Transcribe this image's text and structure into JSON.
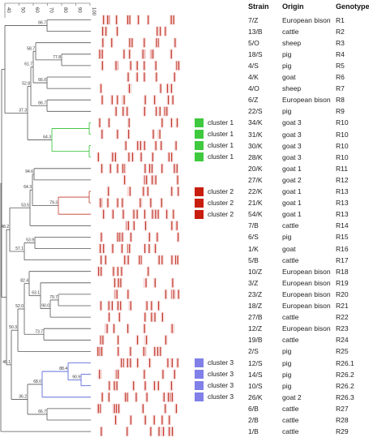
{
  "similarity_scale": {
    "ticks": [
      "40",
      "50",
      "60",
      "70",
      "80",
      "90",
      "100"
    ]
  },
  "headers": {
    "strain": "Strain",
    "origin": "Origin",
    "genotype": "Genotype"
  },
  "node_values": [
    "66.7",
    "77.8",
    "58.7",
    "66.0",
    "61.7",
    "66.7",
    "52.8",
    "64.3",
    "37.3",
    "53.5",
    "94.6",
    "79.3",
    "64.3",
    "48.2",
    "53.9",
    "57.1",
    "40.1",
    "82.4",
    "63.1",
    "79.7",
    "90.0",
    "52.0",
    "73.7",
    "50.3",
    "68.0",
    "88.4",
    "90.9",
    "36.2",
    "66.7"
  ],
  "rows": [
    {
      "strain": "7/Z",
      "origin": "European bison",
      "genotype": "R1"
    },
    {
      "strain": "13/B",
      "origin": "cattle",
      "genotype": "R2"
    },
    {
      "strain": "5/O",
      "origin": "sheep",
      "genotype": "R3"
    },
    {
      "strain": "18/S",
      "origin": "pig",
      "genotype": "R4"
    },
    {
      "strain": "4/S",
      "origin": "pig",
      "genotype": "R5"
    },
    {
      "strain": "4/K",
      "origin": "goat",
      "genotype": "R6"
    },
    {
      "strain": "4/O",
      "origin": "sheep",
      "genotype": "R7"
    },
    {
      "strain": "6/Z",
      "origin": "European bison",
      "genotype": "R8"
    },
    {
      "strain": "22/S",
      "origin": "pig",
      "genotype": "R9"
    },
    {
      "strain": "34/K",
      "origin": "goat 3",
      "genotype": "R10"
    },
    {
      "strain": "31/K",
      "origin": "goat 3",
      "genotype": "R10"
    },
    {
      "strain": "30/K",
      "origin": "goat 3",
      "genotype": "R10"
    },
    {
      "strain": "28/K",
      "origin": "goat 3",
      "genotype": "R10"
    },
    {
      "strain": "20/K",
      "origin": "goat 1",
      "genotype": "R11"
    },
    {
      "strain": "27/K",
      "origin": "goat 2",
      "genotype": "R12"
    },
    {
      "strain": "22/K",
      "origin": "goat 1",
      "genotype": "R13"
    },
    {
      "strain": "21/K",
      "origin": "goat 1",
      "genotype": "R13"
    },
    {
      "strain": "54/K",
      "origin": "goat 1",
      "genotype": "R13"
    },
    {
      "strain": "7/B",
      "origin": "cattle",
      "genotype": "R14"
    },
    {
      "strain": "6/S",
      "origin": "pig",
      "genotype": "R15"
    },
    {
      "strain": "1/K",
      "origin": "goat",
      "genotype": "R16"
    },
    {
      "strain": "5/B",
      "origin": "cattle",
      "genotype": "R17"
    },
    {
      "strain": "10/Z",
      "origin": "European bison",
      "genotype": "R18"
    },
    {
      "strain": "3/Z",
      "origin": "European bison",
      "genotype": "R19"
    },
    {
      "strain": "23/Z",
      "origin": "European bison",
      "genotype": "R20"
    },
    {
      "strain": "18/Z",
      "origin": "European bison",
      "genotype": "R21"
    },
    {
      "strain": "27/B",
      "origin": "cattle",
      "genotype": "R22"
    },
    {
      "strain": "12/Z",
      "origin": "European bison",
      "genotype": "R23"
    },
    {
      "strain": "19/B",
      "origin": "cattle",
      "genotype": "R24"
    },
    {
      "strain": "2/S",
      "origin": "pig",
      "genotype": "R25"
    },
    {
      "strain": "12/S",
      "origin": "pig",
      "genotype": "R26.1"
    },
    {
      "strain": "14/S",
      "origin": "pig",
      "genotype": "R26.2"
    },
    {
      "strain": "10/S",
      "origin": "pig",
      "genotype": "R26.2"
    },
    {
      "strain": "26/K",
      "origin": "goat 2",
      "genotype": "R26.3"
    },
    {
      "strain": "6/B",
      "origin": "cattle",
      "genotype": "R27"
    },
    {
      "strain": "2/B",
      "origin": "cattle",
      "genotype": "R28"
    },
    {
      "strain": "1/B",
      "origin": "cattle",
      "genotype": "R29"
    }
  ],
  "clusters": [
    {
      "label": "cluster 1",
      "color": "#3ec93e"
    },
    {
      "label": "cluster 1",
      "color": "#3ec93e"
    },
    {
      "label": "cluster 1",
      "color": "#3ec93e"
    },
    {
      "label": "cluster 1",
      "color": "#3ec93e"
    },
    {
      "label": "cluster 2",
      "color": "#c81e10"
    },
    {
      "label": "cluster 2",
      "color": "#c81e10"
    },
    {
      "label": "cluster 2",
      "color": "#c81e10"
    },
    {
      "label": "cluster 3",
      "color": "#8080e8"
    },
    {
      "label": "cluster 3",
      "color": "#8080e8"
    },
    {
      "label": "cluster 3",
      "color": "#8080e8"
    },
    {
      "label": "cluster 3",
      "color": "#8080e8"
    }
  ],
  "colors": {
    "tree": "#555555",
    "cluster1_branch": "#2fbf2f",
    "cluster2_branch": "#c0392b",
    "cluster3_branch": "#4b5bd6",
    "band": "#c0392b",
    "band_halo": "#f8dcdc"
  }
}
